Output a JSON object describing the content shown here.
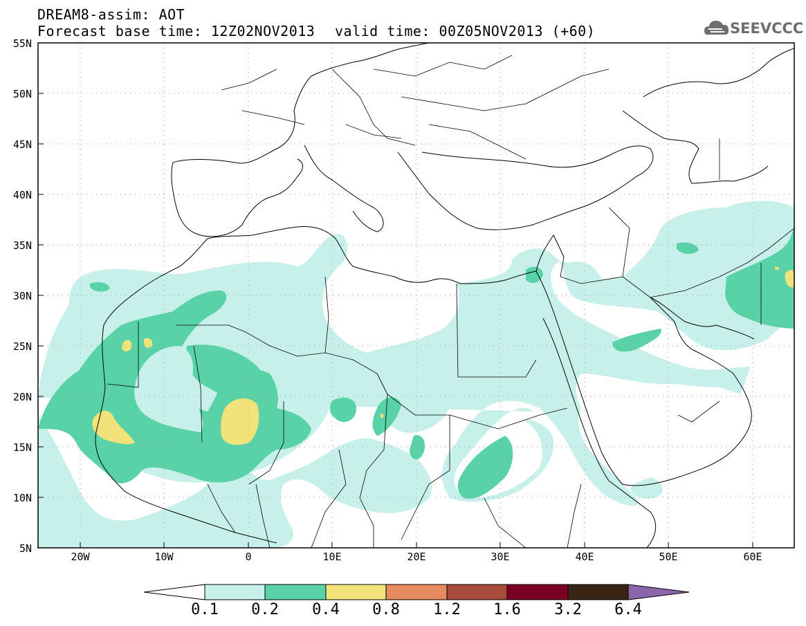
{
  "title": {
    "line1": "DREAM8-assim: AOT",
    "line2": "Forecast base time: 12Z02NOV2013",
    "valid": "valid time: 00Z05NOV2013 (+60)"
  },
  "logo": {
    "text": "SEEVCCC",
    "icon": "cloud-logo-icon"
  },
  "axes": {
    "lat_labels": [
      "55N",
      "50N",
      "45N",
      "40N",
      "35N",
      "30N",
      "25N",
      "20N",
      "15N",
      "10N",
      "5N"
    ],
    "lon_labels": [
      "20W",
      "10W",
      "0",
      "10E",
      "20E",
      "30E",
      "40E",
      "50E",
      "60E"
    ]
  },
  "colorbar": {
    "labels": [
      "0.1",
      "0.2",
      "0.4",
      "0.8",
      "1.2",
      "1.6",
      "3.2",
      "6.4"
    ],
    "colors": [
      "#ffffff",
      "#c8f0ea",
      "#5ad2a8",
      "#f2e27a",
      "#e68a60",
      "#a84a3c",
      "#7a0025",
      "#3a2514",
      "#8a66aa"
    ]
  },
  "colors": {
    "aot_0_1": "#c8f0ea",
    "aot_0_2": "#5ad2a8",
    "aot_0_4": "#f2e27a",
    "border": "#000000",
    "grid": "#9a9a9a"
  }
}
